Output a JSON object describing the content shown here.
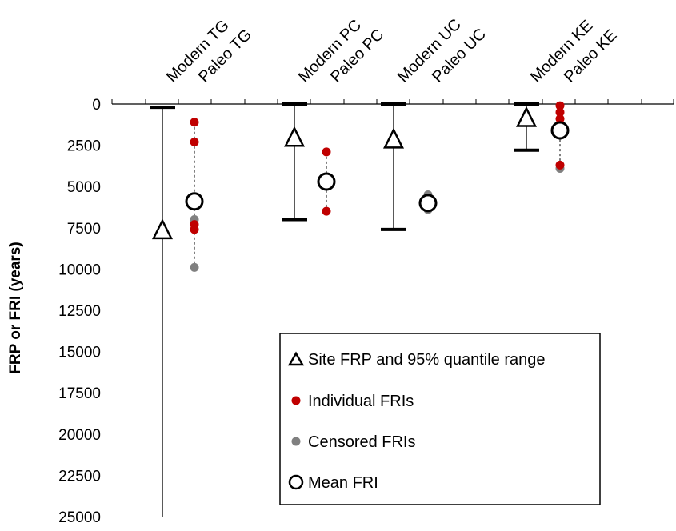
{
  "chart_data": {
    "type": "scatter",
    "ylabel": "FRP or FRI (years)",
    "ylim": [
      0,
      25000
    ],
    "y_inverted": true,
    "yticks": [
      0,
      2500,
      5000,
      7500,
      10000,
      12500,
      15000,
      17500,
      20000,
      22500,
      25000
    ],
    "grid": false,
    "categories": [
      "Modern TG",
      "Paleo TG",
      "Modern PC",
      "Paleo PC",
      "Modern UC",
      "Paleo UC",
      "Modern KE",
      "Paleo KE"
    ],
    "site_frp": [
      {
        "category": "Modern TG",
        "frp": 7600,
        "q_low": 200,
        "q_high": 25000
      },
      {
        "category": "Modern PC",
        "frp": 2000,
        "q_low": 0,
        "q_high": 7000
      },
      {
        "category": "Modern UC",
        "frp": 2100,
        "q_low": 0,
        "q_high": 7600
      },
      {
        "category": "Modern KE",
        "frp": 800,
        "q_low": 0,
        "q_high": 2800
      }
    ],
    "paleo_fri": [
      {
        "category": "Paleo TG",
        "individual": [
          1100,
          2300,
          7300,
          7600
        ],
        "censored": [
          7000,
          9900
        ],
        "mean": 5900
      },
      {
        "category": "Paleo PC",
        "individual": [
          2900,
          6500
        ],
        "censored": [],
        "mean": 4700
      },
      {
        "category": "Paleo UC",
        "individual": [],
        "censored": [
          5500,
          6000,
          6400
        ],
        "mean": 6000
      },
      {
        "category": "Paleo KE",
        "individual": [
          100,
          500,
          900,
          1300,
          3700
        ],
        "censored": [
          3900
        ],
        "mean": 1600
      }
    ],
    "legend": {
      "placement": "bottom-right",
      "items": [
        {
          "symbol": "triangle",
          "label": "Site FRP and 95% quantile range"
        },
        {
          "symbol": "red-dot",
          "label": "Individual FRIs"
        },
        {
          "symbol": "gray-dot",
          "label": "Censored FRIs"
        },
        {
          "symbol": "open-circle",
          "label": "Mean FRI"
        }
      ]
    },
    "colors": {
      "individual": "#c00000",
      "censored": "#808080",
      "line": "#000000"
    }
  }
}
